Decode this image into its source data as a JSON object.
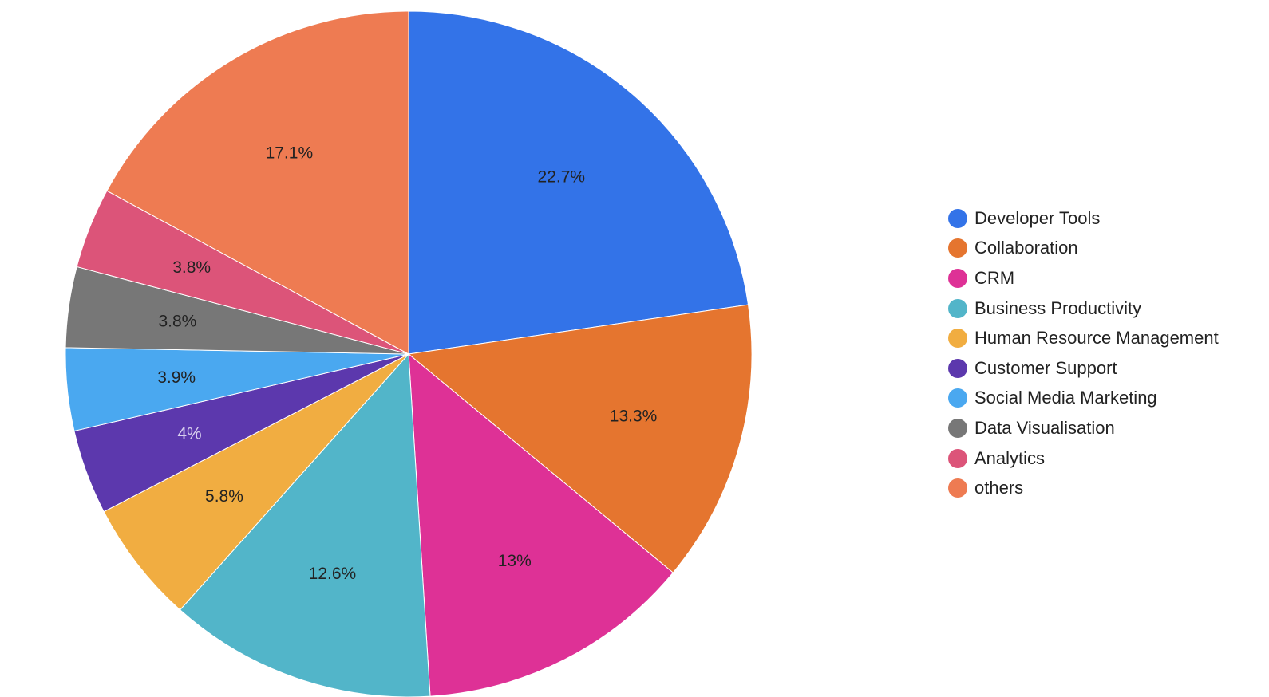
{
  "chart_data": {
    "type": "pie",
    "start_angle_deg": 0,
    "direction": "clockwise",
    "legend_position": "right",
    "slices": [
      {
        "name": "Developer Tools",
        "value": 22.7,
        "label": "22.7%",
        "color": "#3373e8"
      },
      {
        "name": "Collaboration",
        "value": 13.3,
        "label": "13.3%",
        "color": "#e5752f"
      },
      {
        "name": "CRM",
        "value": 13.0,
        "label": "13%",
        "color": "#de3196"
      },
      {
        "name": "Business Productivity",
        "value": 12.6,
        "label": "12.6%",
        "color": "#52b5c9"
      },
      {
        "name": "Human Resource Management",
        "value": 5.8,
        "label": "5.8%",
        "color": "#f1ad41"
      },
      {
        "name": "Customer Support",
        "value": 4.0,
        "label": "4%",
        "color": "#5c38ad"
      },
      {
        "name": "Social Media Marketing",
        "value": 3.9,
        "label": "3.9%",
        "color": "#4aa8f0"
      },
      {
        "name": "Data Visualisation",
        "value": 3.8,
        "label": "3.8%",
        "color": "#777777"
      },
      {
        "name": "Analytics",
        "value": 3.8,
        "label": "3.8%",
        "color": "#dc5479"
      },
      {
        "name": "others",
        "value": 17.1,
        "label": "17.1%",
        "color": "#ee7b52"
      }
    ]
  }
}
